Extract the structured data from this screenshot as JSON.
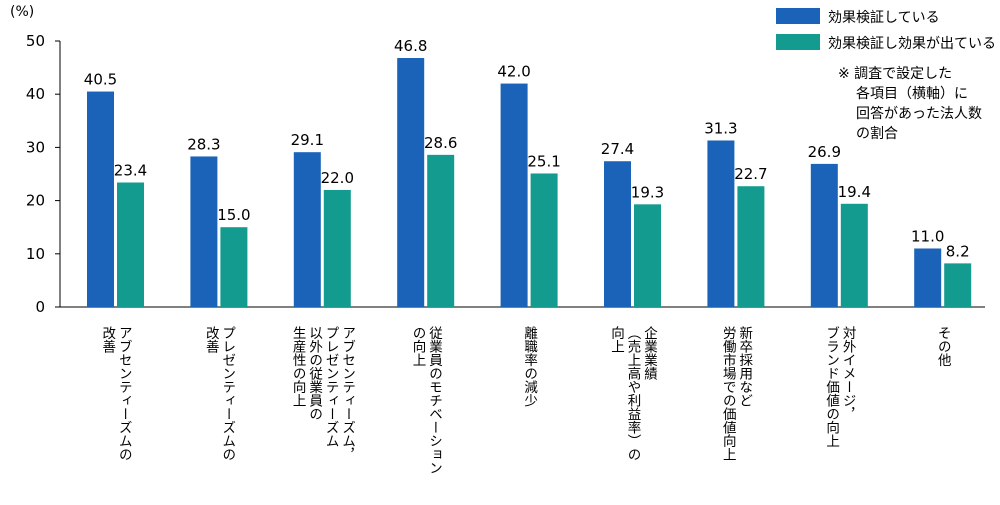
{
  "chart_data": {
    "type": "bar",
    "unit_label": "(%)",
    "ylim": [
      0,
      50
    ],
    "yticks": [
      "0",
      "10",
      "20",
      "30",
      "40",
      "50"
    ],
    "categories": [
      [
        "アブセンティーズムの",
        "改善"
      ],
      [
        "プレゼンティーズムの",
        "改善"
      ],
      [
        "アブセンティーズム，",
        "プレゼンティーズム",
        "以外の従業員の",
        "生産性の向上"
      ],
      [
        "従業員のモチベーション",
        "の向上"
      ],
      [
        "離職率の減少"
      ],
      [
        "企業業績",
        "（売上高や利益率）の",
        "向上"
      ],
      [
        "新卒採用など",
        "労働市場での価値向上"
      ],
      [
        "対外イメージ，",
        "ブランド価値の向上"
      ],
      [
        "その他"
      ]
    ],
    "series": [
      {
        "name": "効果検証している",
        "color": "#1a63b8",
        "values": [
          40.5,
          28.3,
          29.1,
          46.8,
          42.0,
          27.4,
          31.3,
          26.9,
          11.0
        ],
        "labels": [
          "40.5",
          "28.3",
          "29.1",
          "46.8",
          "42.0",
          "27.4",
          "31.3",
          "26.9",
          "11.0"
        ]
      },
      {
        "name": "効果検証し効果が出ている",
        "color": "#139b8f",
        "values": [
          23.4,
          15.0,
          22.0,
          28.6,
          25.1,
          19.3,
          22.7,
          19.4,
          8.2
        ],
        "labels": [
          "23.4",
          "15.0",
          "22.0",
          "28.6",
          "25.1",
          "19.3",
          "22.7",
          "19.4",
          "8.2"
        ]
      }
    ],
    "note": [
      "※ 調査で設定した",
      "各項目（横軸）に",
      "回答があった法人数",
      "の割合"
    ],
    "legend_position": "top-right",
    "grid": false
  }
}
